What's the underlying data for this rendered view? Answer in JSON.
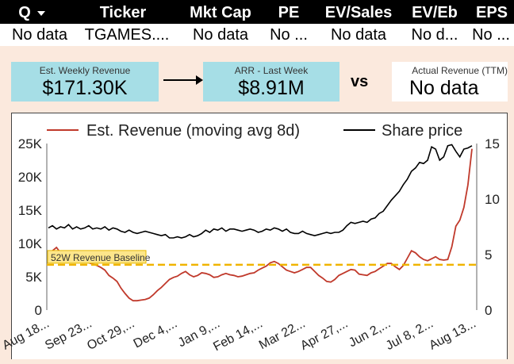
{
  "table": {
    "headers": [
      {
        "id": "q",
        "label": "Q"
      },
      {
        "id": "ticker",
        "label": "Ticker"
      },
      {
        "id": "mktcap",
        "label": "Mkt Cap"
      },
      {
        "id": "pe",
        "label": "PE"
      },
      {
        "id": "evsales",
        "label": "EV/Sales"
      },
      {
        "id": "eveb",
        "label": "EV/Eb"
      },
      {
        "id": "eps",
        "label": "EPS"
      }
    ],
    "row": [
      "No data",
      "TGAMES....",
      "No data",
      "No ...",
      "No data",
      "No d...",
      "No ..."
    ]
  },
  "kpis": {
    "weekly": {
      "label": "Est. Weekly Revenue",
      "value": "$171.30K"
    },
    "arr": {
      "label": "ARR - Last Week",
      "value": "$8.91M"
    },
    "vs": "vs",
    "actual": {
      "label": "Actual Revenue (TTM)",
      "value": "No data"
    }
  },
  "chart_data": {
    "type": "line",
    "legend": [
      {
        "name": "Est. Revenue (moving avg 8d)",
        "color": "#c0392b"
      },
      {
        "name": "Share price",
        "color": "#000000"
      }
    ],
    "x_ticks": [
      "Aug 18...",
      "Sep 23...",
      "Oct 29,...",
      "Dec 4,...",
      "Jan 9,...",
      "Feb 14,...",
      "Mar 22...",
      "Apr 27,...",
      "Jun 2,...",
      "Jul 8, 2...",
      "Aug 13..."
    ],
    "y_left": {
      "ticks": [
        "0",
        "5K",
        "10K",
        "15K",
        "20K",
        "25K"
      ],
      "range": [
        0,
        25000
      ]
    },
    "y_right": {
      "ticks": [
        "0",
        "5",
        "10",
        "15"
      ],
      "range": [
        0,
        15
      ]
    },
    "baseline": {
      "label": "52W Revenue Baseline",
      "value": 6800,
      "color": "#f0b400"
    },
    "x_count": 100,
    "series": [
      {
        "name": "Est. Revenue (moving avg 8d)",
        "axis": "left",
        "color": "#c0392b",
        "values": [
          8000,
          8900,
          9400,
          8600,
          7800,
          7400,
          7700,
          8200,
          7600,
          7300,
          7100,
          6900,
          6700,
          6400,
          6000,
          5200,
          4800,
          4300,
          3300,
          2500,
          1800,
          1400,
          1400,
          1500,
          1600,
          1800,
          2300,
          2900,
          3400,
          4000,
          4600,
          4900,
          5100,
          5500,
          5800,
          5300,
          5000,
          5200,
          5600,
          5500,
          5300,
          4900,
          5000,
          5300,
          5500,
          5300,
          5200,
          5000,
          5100,
          5300,
          5500,
          5600,
          6000,
          6300,
          6600,
          7100,
          7300,
          7000,
          6500,
          6000,
          5800,
          5600,
          5800,
          6100,
          6400,
          6400,
          5800,
          5200,
          4800,
          4300,
          4200,
          4600,
          5200,
          5500,
          5800,
          6100,
          6000,
          5400,
          5300,
          5200,
          5600,
          5800,
          6200,
          6600,
          7000,
          7000,
          6500,
          6100,
          6700,
          7800,
          8900,
          8600,
          8000,
          7600,
          7400,
          7700,
          8000,
          7600,
          7500,
          7600
        ]
      },
      {
        "name": "Share price",
        "axis": "right",
        "color": "#000000",
        "values": [
          7.4,
          7.6,
          7.3,
          7.5,
          7.4,
          7.7,
          7.3,
          7.5,
          7.3,
          7.4,
          7.6,
          7.3,
          7.4,
          7.3,
          7.5,
          7.2,
          7.4,
          7.3,
          7.1,
          7.0,
          7.2,
          7.0,
          6.9,
          7.0,
          7.1,
          7.0,
          6.9,
          6.8,
          6.7,
          6.8,
          6.5,
          6.5,
          6.6,
          6.5,
          6.6,
          6.8,
          6.6,
          6.7,
          6.9,
          7.2,
          7.0,
          7.3,
          7.2,
          7.4,
          7.1,
          7.3,
          7.3,
          7.2,
          7.1,
          7.2,
          7.3,
          7.2,
          7.0,
          7.1,
          7.3,
          7.2,
          7.4,
          7.3,
          7.1,
          7.3,
          7.0,
          6.9,
          6.9,
          7.1,
          6.9,
          6.8,
          6.7,
          6.8,
          6.9,
          7.0,
          6.9,
          7.0,
          7.0,
          7.2,
          7.6,
          7.9,
          7.8,
          7.9,
          8.0,
          7.9,
          8.2,
          8.3,
          8.7,
          8.9,
          9.4,
          9.9,
          10.3,
          10.7,
          11.3,
          11.8,
          12.5,
          12.8,
          13.3,
          13.2,
          13.5,
          14.7,
          14.5,
          13.5,
          13.8,
          14.8
        ]
      }
    ],
    "revenue_tail": [
      9500,
      12600,
      13500,
      15400,
      18800,
      24200
    ],
    "price_tail": [
      14.9,
      14.3,
      13.8,
      14.5,
      14.6,
      14.8
    ]
  }
}
